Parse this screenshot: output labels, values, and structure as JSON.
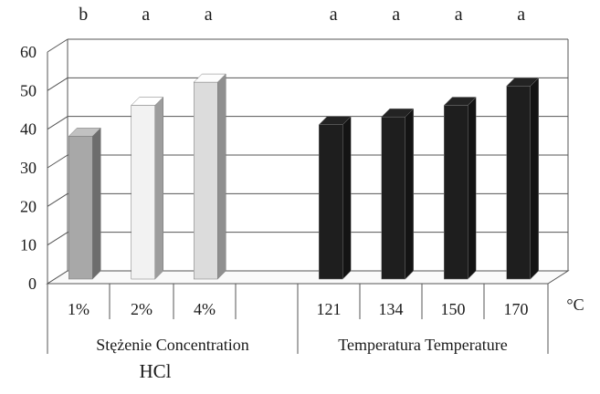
{
  "chart_data": {
    "type": "bar",
    "style": "3d-column",
    "title": "",
    "ylabel": "",
    "ylim": [
      0,
      60
    ],
    "yticks": [
      0,
      10,
      20,
      30,
      40,
      50,
      60
    ],
    "grid": true,
    "categories": [
      "1%",
      "2%",
      "4%",
      "",
      "121",
      "134",
      "150",
      "170"
    ],
    "values": [
      37,
      45,
      51,
      null,
      40,
      42,
      45,
      50
    ],
    "significance_letters": [
      "b",
      "a",
      "a",
      "",
      "a",
      "a",
      "a",
      "a"
    ],
    "bar_colors": [
      "#a8a8a8",
      "#f2f2f2",
      "#dcdcdc",
      null,
      "#1e1e1e",
      "#1e1e1e",
      "#1e1e1e",
      "#1e1e1e"
    ],
    "groups": [
      {
        "label": "Stężenie Concentration",
        "sublabel": "HCl"
      },
      {
        "label": "Temperatura Temperature",
        "unit": "°C"
      }
    ]
  }
}
